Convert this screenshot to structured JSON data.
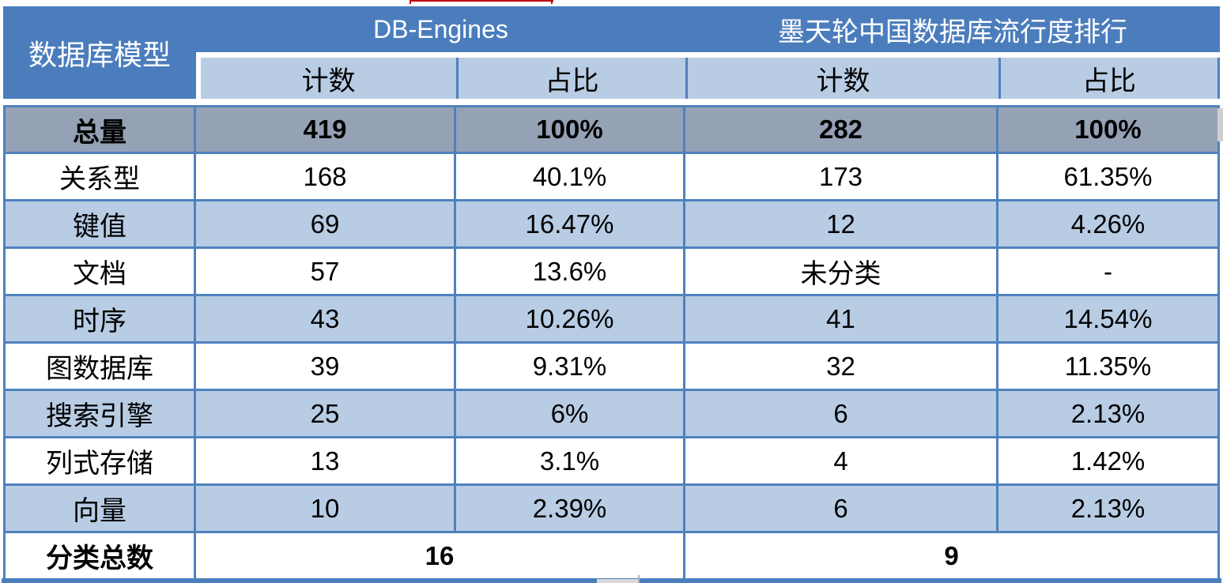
{
  "header": {
    "model_label": "数据库模型",
    "source_left": "DB-Engines",
    "source_right": "墨天轮中国数据库流行度排行",
    "count_label_left": "计数",
    "ratio_label_left": "占比",
    "count_label_right": "计数",
    "ratio_label_right": "占比"
  },
  "table": {
    "total_row": {
      "label": "总量",
      "cells": [
        "419",
        "100%",
        "282",
        "100%"
      ]
    },
    "rows": [
      {
        "label": "关系型",
        "cells": [
          "168",
          "40.1%",
          "173",
          "61.35%"
        ]
      },
      {
        "label": "键值",
        "cells": [
          "69",
          "16.47%",
          "12",
          "4.26%"
        ]
      },
      {
        "label": "文档",
        "cells": [
          "57",
          "13.6%",
          "未分类",
          "-"
        ]
      },
      {
        "label": "时序",
        "cells": [
          "43",
          "10.26%",
          "41",
          "14.54%"
        ]
      },
      {
        "label": "图数据库",
        "cells": [
          "39",
          "9.31%",
          "32",
          "11.35%"
        ]
      },
      {
        "label": "搜索引擎",
        "cells": [
          "25",
          "6%",
          "6",
          "2.13%"
        ]
      },
      {
        "label": "列式存储",
        "cells": [
          "13",
          "3.1%",
          "4",
          "1.42%"
        ]
      },
      {
        "label": "向量",
        "cells": [
          "10",
          "2.39%",
          "6",
          "2.13%"
        ]
      }
    ],
    "summary_row": {
      "label": "分类总数",
      "left_total": "16",
      "right_total": "9"
    }
  },
  "chart_data": {
    "type": "table",
    "title": "",
    "column_groups": [
      "DB-Engines",
      "墨天轮中国数据库流行度排行"
    ],
    "columns": [
      "数据库模型",
      "计数",
      "占比",
      "计数",
      "占比"
    ],
    "rows": [
      [
        "总量",
        419,
        "100%",
        282,
        "100%"
      ],
      [
        "关系型",
        168,
        "40.1%",
        173,
        "61.35%"
      ],
      [
        "键值",
        69,
        "16.47%",
        12,
        "4.26%"
      ],
      [
        "文档",
        57,
        "13.6%",
        "未分类",
        "-"
      ],
      [
        "时序",
        43,
        "10.26%",
        41,
        "14.54%"
      ],
      [
        "图数据库",
        39,
        "9.31%",
        32,
        "11.35%"
      ],
      [
        "搜索引擎",
        25,
        "6%",
        6,
        "2.13%"
      ],
      [
        "列式存储",
        13,
        "3.1%",
        4,
        "1.42%"
      ],
      [
        "向量",
        10,
        "2.39%",
        6,
        "2.13%"
      ],
      [
        "分类总数",
        16,
        null,
        9,
        null
      ]
    ],
    "layout": {
      "grid": true,
      "banded_rows": true,
      "total_row_highlighted": true
    }
  },
  "colors": {
    "header_blue": "#4b7dbd",
    "subheader_blue": "#b8cce4",
    "total_row_gray": "#95a2b5",
    "border_blue": "#4f81bd",
    "band_stripe": "#b8cce4",
    "accent_red_fragment": "#c00000"
  }
}
